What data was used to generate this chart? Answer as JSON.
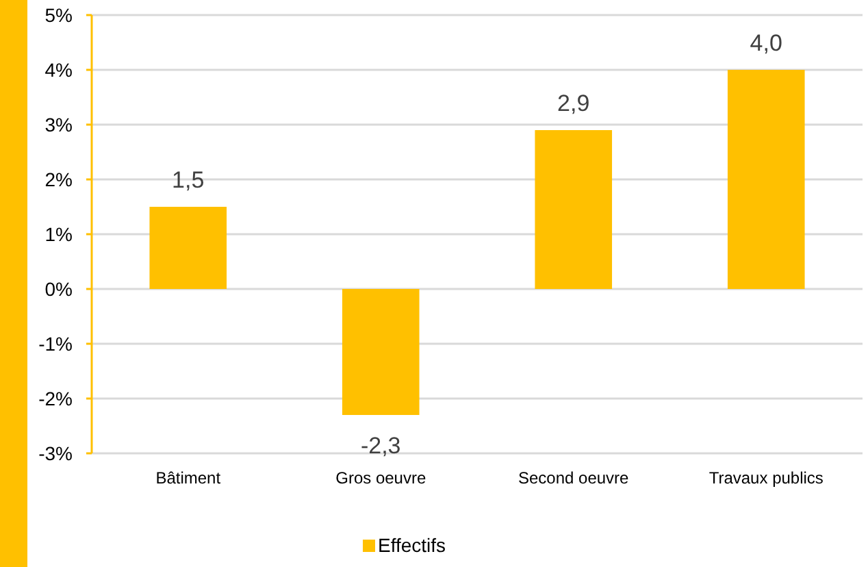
{
  "chart_data": {
    "type": "bar",
    "categories": [
      "Bâtiment",
      "Gros oeuvre",
      "Second oeuvre",
      "Travaux publics"
    ],
    "series": [
      {
        "name": "Effectifs",
        "color": "#ffc000",
        "values": [
          1.5,
          -2.3,
          2.9,
          4.0
        ],
        "value_labels": [
          "1,5",
          "-2,3",
          "2,9",
          "4,0"
        ]
      }
    ],
    "ylim": [
      -3,
      5
    ],
    "yticks": [
      {
        "value": -3,
        "label": "-3%"
      },
      {
        "value": -2,
        "label": "-2%"
      },
      {
        "value": -1,
        "label": "-1%"
      },
      {
        "value": 0,
        "label": "0%"
      },
      {
        "value": 1,
        "label": "1%"
      },
      {
        "value": 2,
        "label": "2%"
      },
      {
        "value": 3,
        "label": "3%"
      },
      {
        "value": 4,
        "label": "4%"
      },
      {
        "value": 5,
        "label": "5%"
      }
    ],
    "grid": "y",
    "legend": "bottom"
  }
}
